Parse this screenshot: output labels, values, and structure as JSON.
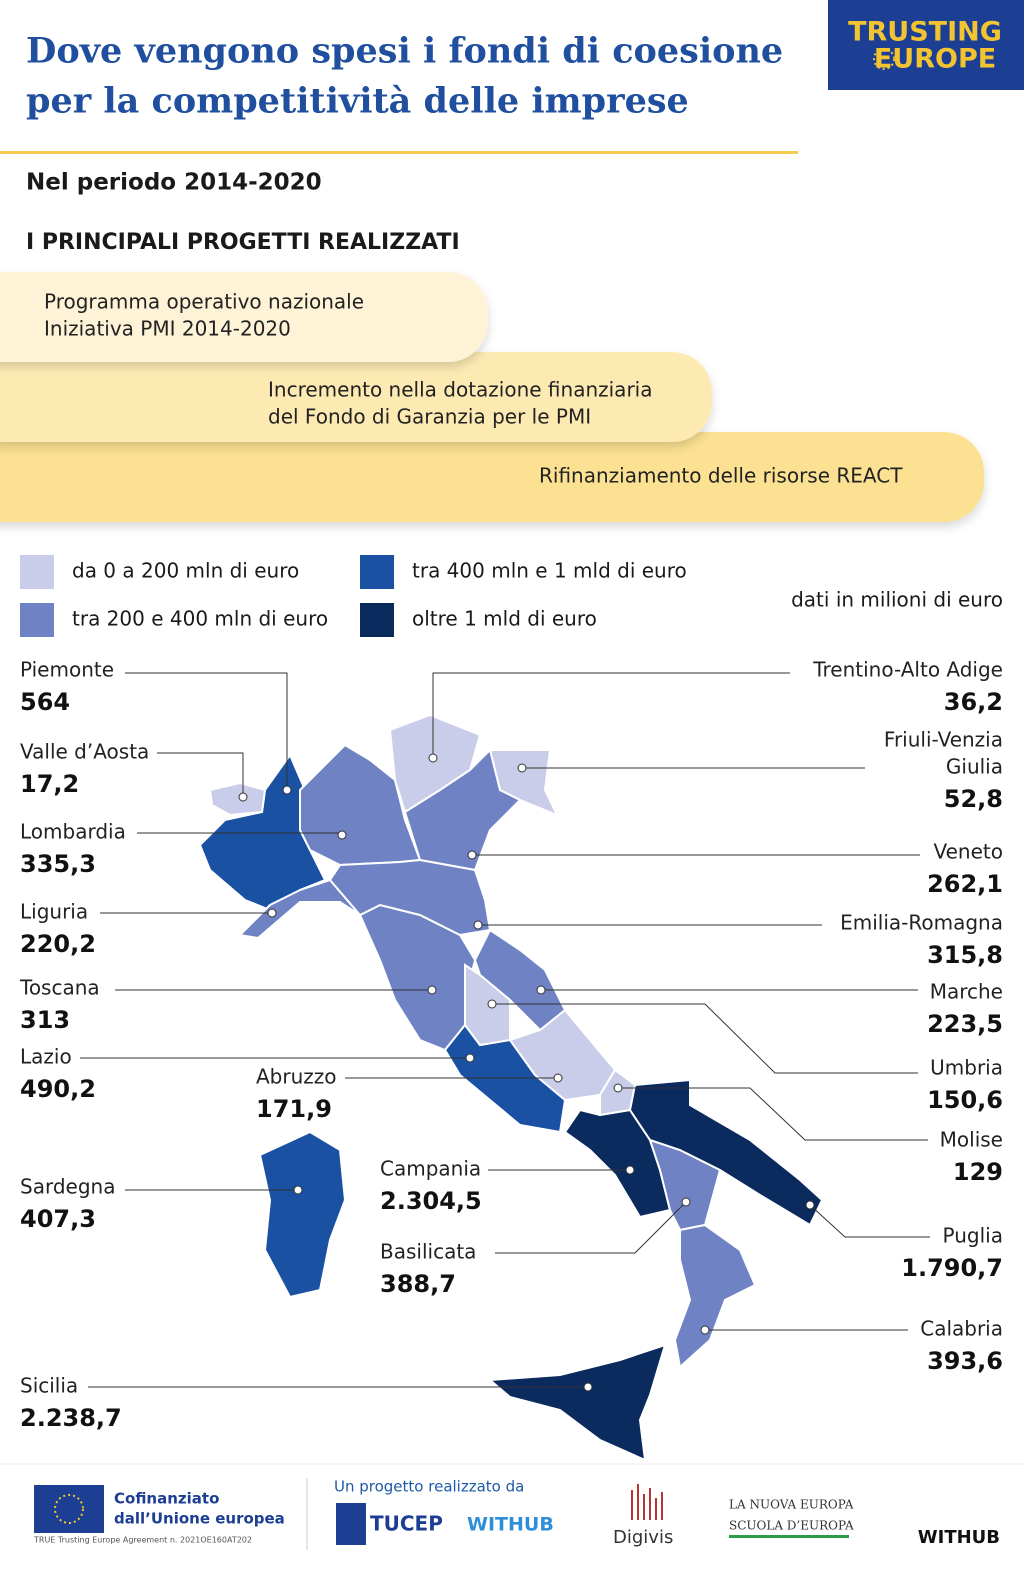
{
  "header": {
    "title_lines": [
      "Dove vengono spesi i fondi di coesione",
      "per la competitività delle imprese"
    ],
    "logo": [
      "TRUSTING",
      "EUROPE"
    ],
    "period": "Nel periodo 2014-2020",
    "projects_heading": "I PRINCIPALI PROGETTI REALIZZATI"
  },
  "projects": [
    [
      "Programma operativo nazionale",
      "Iniziativa PMI 2014-2020"
    ],
    [
      "Incremento nella dotazione finanziaria",
      "del Fondo di Garanzia per le PMI"
    ],
    [
      "Rifinanziamento delle risorse REACT"
    ]
  ],
  "legend": [
    {
      "label": "da 0 a 200 mln di euro",
      "color": "#c9cdea"
    },
    {
      "label": "tra 200 e 400 mln di euro",
      "color": "#6f82c3"
    },
    {
      "label": "tra 400 mln e 1 mld di euro",
      "color": "#1a51a2"
    },
    {
      "label": "oltre 1 mld di euro",
      "color": "#0b2a5e"
    }
  ],
  "unit_note": "dati in milioni di euro",
  "regions": [
    {
      "name": "Piemonte",
      "value": "564",
      "color": "#1a51a2"
    },
    {
      "name": "Valle d’Aosta",
      "value": "17,2",
      "color": "#c9cdea"
    },
    {
      "name": "Lombardia",
      "value": "335,3",
      "color": "#6f82c3"
    },
    {
      "name": "Liguria",
      "value": "220,2",
      "color": "#6f82c3"
    },
    {
      "name": "Toscana",
      "value": "313",
      "color": "#6f82c3"
    },
    {
      "name": "Lazio",
      "value": "490,2",
      "color": "#1a51a2"
    },
    {
      "name": "Abruzzo",
      "value": "171,9",
      "color": "#c9cdea"
    },
    {
      "name": "Sardegna",
      "value": "407,3",
      "color": "#1a51a2"
    },
    {
      "name": "Campania",
      "value": "2.304,5",
      "color": "#0b2a5e"
    },
    {
      "name": "Basilicata",
      "value": "388,7",
      "color": "#6f82c3"
    },
    {
      "name": "Sicilia",
      "value": "2.238,7",
      "color": "#0b2a5e"
    },
    {
      "name": "Trentino-Alto Adige",
      "value": "36,2",
      "color": "#c9cdea"
    },
    {
      "name": [
        "Friuli-Venzia",
        "Giulia"
      ],
      "value": "52,8",
      "color": "#c9cdea"
    },
    {
      "name": "Veneto",
      "value": "262,1",
      "color": "#6f82c3"
    },
    {
      "name": "Emilia-Romagna",
      "value": "315,8",
      "color": "#6f82c3"
    },
    {
      "name": "Marche",
      "value": "223,5",
      "color": "#6f82c3"
    },
    {
      "name": "Umbria",
      "value": "150,6",
      "color": "#c9cdea"
    },
    {
      "name": "Molise",
      "value": "129",
      "color": "#c9cdea"
    },
    {
      "name": "Puglia",
      "value": "1.790,7",
      "color": "#0b2a5e"
    },
    {
      "name": "Calabria",
      "value": "393,6",
      "color": "#6f82c3"
    }
  ],
  "footer": {
    "eu": [
      "Cofinanziato",
      "dall’Unione europea"
    ],
    "agreement": "TRUE Trusting Europe Agreement n. 2021OE160AT202",
    "by": "Un progetto realizzato da",
    "partners": [
      "TUCEP",
      "WITHUB",
      "Digivis",
      "LA NUOVA EUROPA",
      "SCUOLA D’EUROPA",
      "WITHUB"
    ]
  }
}
